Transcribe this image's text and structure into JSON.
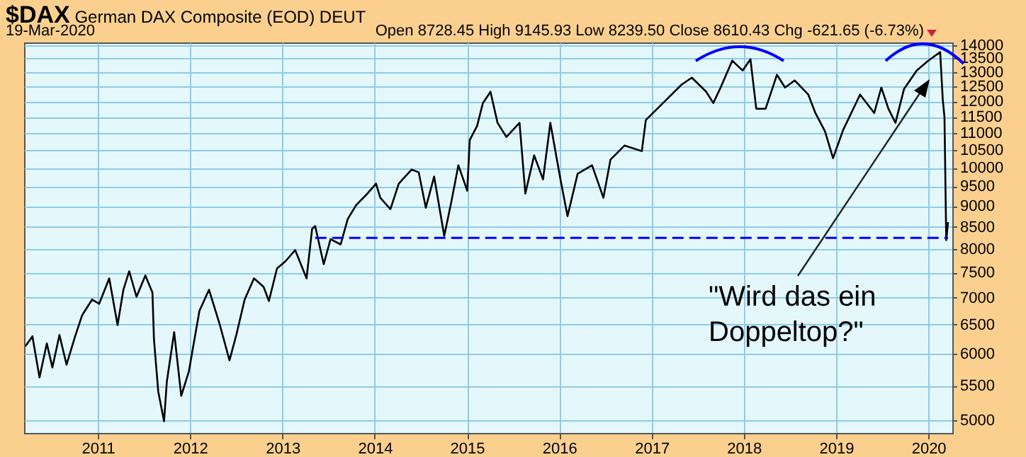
{
  "chart_data": {
    "type": "line",
    "title": "$DAX German DAX Composite (EOD) DEUT",
    "annotations": [
      "19-Mar-2020",
      "Open 8728.45 High 9145.93 Low 8239.50 Close 8610.43 Chg -621.65 (-6.73%)",
      "\"Wird das ein Doppeltop?\""
    ],
    "series": [
      {
        "color": "#000000",
        "x": [
          "2010-03-20",
          "2010-04-17",
          "2010-05-15",
          "2010-06-13",
          "2010-07-05",
          "2010-08-02",
          "2010-08-30",
          "2010-10-03",
          "2010-10-31",
          "2010-12-09",
          "2011-01-06",
          "2011-02-15",
          "2011-03-20",
          "2011-04-12",
          "2011-05-05",
          "2011-06-03",
          "2011-07-08",
          "2011-08-05",
          "2011-08-11",
          "2011-08-28",
          "2011-09-20",
          "2011-10-01",
          "2011-10-30",
          "2011-11-27",
          "2011-12-27",
          "2012-02-07",
          "2012-03-16",
          "2012-04-28",
          "2012-06-05",
          "2012-07-02",
          "2012-08-04",
          "2012-09-10",
          "2012-10-18",
          "2012-11-08",
          "2012-12-10",
          "2013-01-12",
          "2013-02-20",
          "2013-04-06",
          "2013-04-28",
          "2013-05-10",
          "2013-06-13",
          "2013-07-10",
          "2013-08-19",
          "2013-09-16",
          "2013-10-20",
          "2013-11-28",
          "2014-01-06",
          "2014-01-23",
          "2014-03-04",
          "2014-04-06",
          "2014-05-27",
          "2014-06-24",
          "2014-07-22",
          "2014-08-24",
          "2014-10-03",
          "2014-10-31",
          "2014-11-28",
          "2015-01-02",
          "2015-01-12",
          "2015-02-10",
          "2015-03-05",
          "2015-04-04",
          "2015-05-02",
          "2015-06-06",
          "2015-07-28",
          "2015-08-20",
          "2015-09-24",
          "2015-10-29",
          "2015-11-27",
          "2016-01-06",
          "2016-02-03",
          "2016-03-14",
          "2016-05-10",
          "2016-06-24",
          "2016-07-22",
          "2016-09-16",
          "2016-11-23",
          "2016-12-09",
          "2017-02-15",
          "2017-04-29",
          "2017-06-09",
          "2017-08-05",
          "2017-09-02",
          "2017-10-01",
          "2017-11-16",
          "2017-12-27",
          "2018-01-27",
          "2018-02-19",
          "2018-03-28",
          "2018-05-12",
          "2018-06-13",
          "2018-07-21",
          "2018-09-13",
          "2018-10-11",
          "2018-11-18",
          "2018-12-20",
          "2019-01-29",
          "2019-04-06",
          "2019-06-01",
          "2019-06-29",
          "2019-07-27",
          "2019-08-24",
          "2019-09-27",
          "2019-11-16",
          "2020-01-01",
          "2020-02-17",
          "2020-02-27",
          "2020-03-05",
          "2020-03-12",
          "2020-03-19"
        ],
        "values": [
          6127,
          6296,
          5625,
          6175,
          5780,
          6320,
          5826,
          6296,
          6673,
          6964,
          6883,
          7381,
          6494,
          7155,
          7526,
          7018,
          7439,
          7100,
          6247,
          5411,
          4988,
          5560,
          6369,
          5348,
          5714,
          6751,
          7155,
          6494,
          5894,
          6320,
          6964,
          7381,
          7211,
          6937,
          7585,
          7733,
          7977,
          7381,
          8454,
          8520,
          7673,
          8220,
          8102,
          8687,
          9031,
          9280,
          9572,
          9208,
          8926,
          9572,
          9950,
          9873,
          8961,
          9759,
          8292,
          9102,
          10067,
          9388,
          10788,
          11210,
          11940,
          12316,
          11309,
          10879,
          11309,
          9316,
          10344,
          9684,
          11309,
          9684,
          8755,
          9835,
          10067,
          9208,
          10224,
          10628,
          10465,
          11397,
          11940,
          12557,
          12803,
          12316,
          11940,
          12459,
          13414,
          13055,
          13467,
          11756,
          11756,
          12903,
          12459,
          12705,
          12221,
          11620,
          11049,
          10264,
          11092,
          12221,
          11620,
          12459,
          11756,
          11309,
          12413,
          13055,
          13414,
          13731,
          12080,
          11486,
          8197,
          8610
        ]
      },
      {
        "type": "line",
        "color": "#0000ff",
        "line_style": "dashed",
        "x": [
          "2013-05-10",
          "2020-03-19"
        ],
        "values": [
          8250,
          8250
        ]
      }
    ],
    "xlim": [
      "2010-03-15",
      "2020-04-05"
    ],
    "xticks": [
      {
        "value": "2011-01-01",
        "label": "2011"
      },
      {
        "value": "2012-01-01",
        "label": "2012"
      },
      {
        "value": "2013-01-01",
        "label": "2013"
      },
      {
        "value": "2014-01-01",
        "label": "2014"
      },
      {
        "value": "2015-01-01",
        "label": "2015"
      },
      {
        "value": "2016-01-01",
        "label": "2016"
      },
      {
        "value": "2017-01-01",
        "label": "2017"
      },
      {
        "value": "2018-01-01",
        "label": "2018"
      },
      {
        "value": "2019-01-01",
        "label": "2019"
      },
      {
        "value": "2020-01-01",
        "label": "2020"
      }
    ],
    "ylim": [
      4830,
      14100
    ],
    "yticks": [
      5000,
      5500,
      6000,
      6500,
      7000,
      7500,
      8000,
      8500,
      9000,
      9500,
      10000,
      10500,
      11000,
      11500,
      12000,
      12500,
      13000,
      13500,
      14000
    ],
    "log": true,
    "grid": true
  }
}
